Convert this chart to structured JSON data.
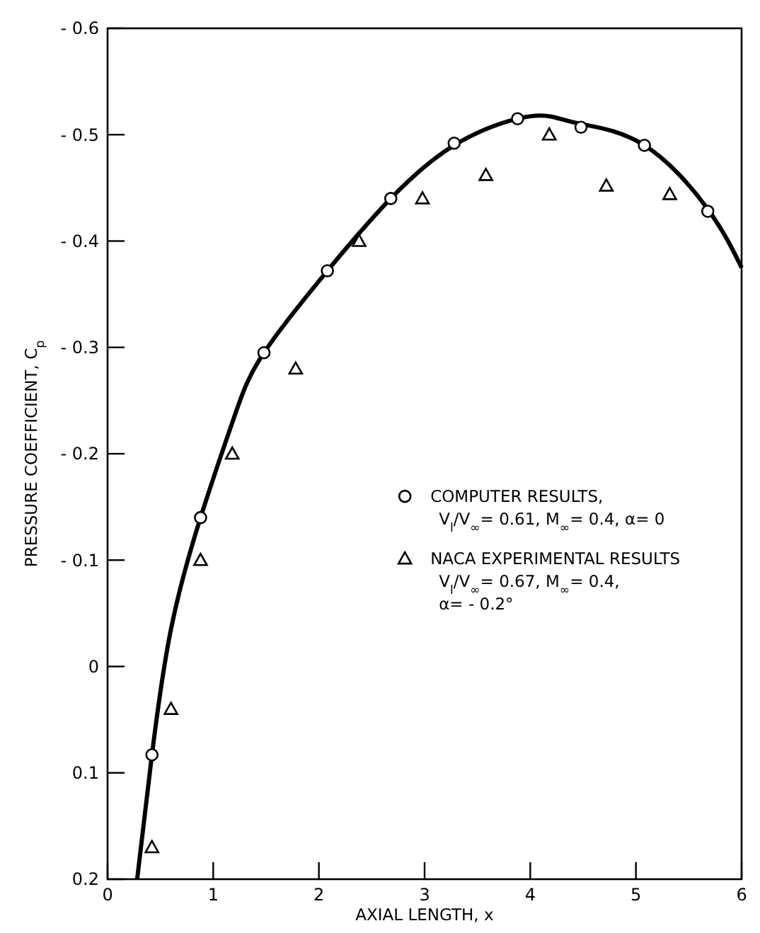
{
  "chart_data": {
    "type": "scatter",
    "xlabel": "AXIAL LENGTH, x",
    "ylabel": "PRESSURE COEFFICIENT, C$_{p}$",
    "xlim": [
      0,
      6
    ],
    "xticks": [
      0,
      1,
      2,
      3,
      4,
      5,
      6
    ],
    "ylim": [
      0.2,
      -0.6
    ],
    "yticks": [
      {
        "value": -0.6,
        "label": "- 0.6"
      },
      {
        "value": -0.5,
        "label": "- 0.5"
      },
      {
        "value": -0.4,
        "label": "- 0.4"
      },
      {
        "value": -0.3,
        "label": "- 0.3"
      },
      {
        "value": -0.2,
        "label": "- 0.2"
      },
      {
        "value": -0.1,
        "label": "- 0.1"
      },
      0,
      0.1,
      0.2
    ],
    "legend": "right",
    "grid": false,
    "series": [
      {
        "type": "line",
        "color": "#000000",
        "line_style": "solid",
        "x": [
          0.28,
          0.42,
          0.6,
          0.88,
          1.2,
          1.48,
          2.08,
          2.68,
          3.28,
          3.88,
          4.2,
          4.48,
          5.08,
          5.68,
          6
        ],
        "values": [
          0.2,
          0.083,
          -0.035,
          -0.14,
          -0.235,
          -0.295,
          -0.372,
          -0.44,
          -0.49,
          -0.515,
          -0.517,
          -0.51,
          -0.49,
          -0.43,
          -0.375
        ]
      },
      {
        "name": "COMPUTER RESULTS,\nV$_{l}$/V$_{∞}$= 0.61, M$_{∞}$= 0.4, α= 0",
        "color": "#000000",
        "marker": "circle",
        "x": [
          0.42,
          0.88,
          1.48,
          2.08,
          2.68,
          3.28,
          3.88,
          4.48,
          5.08,
          5.68
        ],
        "values": [
          0.083,
          -0.14,
          -0.295,
          -0.372,
          -0.44,
          -0.492,
          -0.515,
          -0.507,
          -0.49,
          -0.428
        ]
      },
      {
        "name": "NACA EXPERIMENTAL RESULTS\nV$_{l}$/V$_{∞}$= 0.67, M$_{∞}$= 0.4,\nα= - 0.2°",
        "color": "#000000",
        "marker": "triangle",
        "x": [
          0.42,
          0.6,
          0.88,
          1.18,
          1.78,
          2.38,
          2.98,
          3.58,
          4.18,
          4.72,
          5.32
        ],
        "values": [
          0.17,
          0.04,
          -0.1,
          -0.2,
          -0.28,
          -0.4,
          -0.44,
          -0.462,
          -0.5,
          -0.452,
          -0.444
        ]
      }
    ]
  }
}
